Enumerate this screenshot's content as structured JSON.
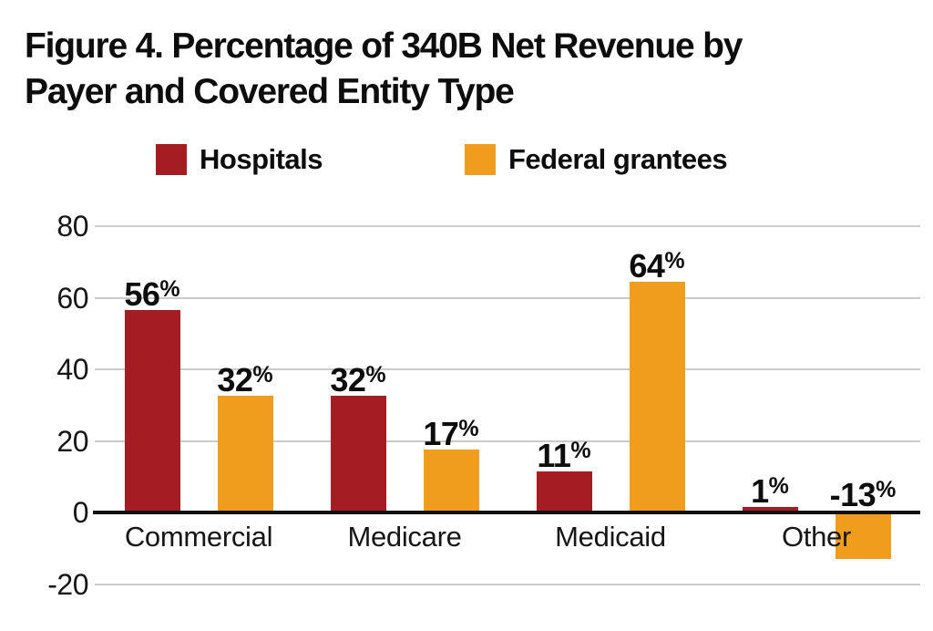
{
  "title": "Figure 4. Percentage of 340B Net Revenue by\nPayer and Covered Entity Type",
  "colors": {
    "hospitals": "#A31D23",
    "federal_grantees": "#F09D1E",
    "gridline": "#CBCBCB",
    "zero_axis": "#101010",
    "text": "#0D0D0D"
  },
  "legend": {
    "items": [
      {
        "label": "Hospitals",
        "color": "#A31D23"
      },
      {
        "label": "Federal grantees",
        "color": "#F09D1E"
      }
    ]
  },
  "chart_data": {
    "type": "bar",
    "title": "Figure 4. Percentage of 340B Net Revenue by Payer and Covered Entity Type",
    "categories": [
      "Commercial",
      "Medicare",
      "Medicaid",
      "Other"
    ],
    "series": [
      {
        "name": "Hospitals",
        "color": "#A31D23",
        "values": [
          56,
          32,
          11,
          1
        ],
        "value_labels": [
          "56%",
          "32%",
          "11%",
          "1%"
        ]
      },
      {
        "name": "Federal grantees",
        "color": "#F09D1E",
        "values": [
          32,
          17,
          64,
          -13
        ],
        "value_labels": [
          "32%",
          "17%",
          "64%",
          "-13%"
        ]
      }
    ],
    "xlabel": "",
    "ylabel": "",
    "ylim": [
      -20,
      80
    ],
    "y_ticks": [
      80,
      60,
      40,
      20,
      0,
      -20
    ],
    "y_tick_labels": [
      "80",
      "60",
      "40",
      "20",
      "0",
      "-20"
    ],
    "grid": "horizontal",
    "legend_position": "top",
    "value_label_format": "percent"
  }
}
